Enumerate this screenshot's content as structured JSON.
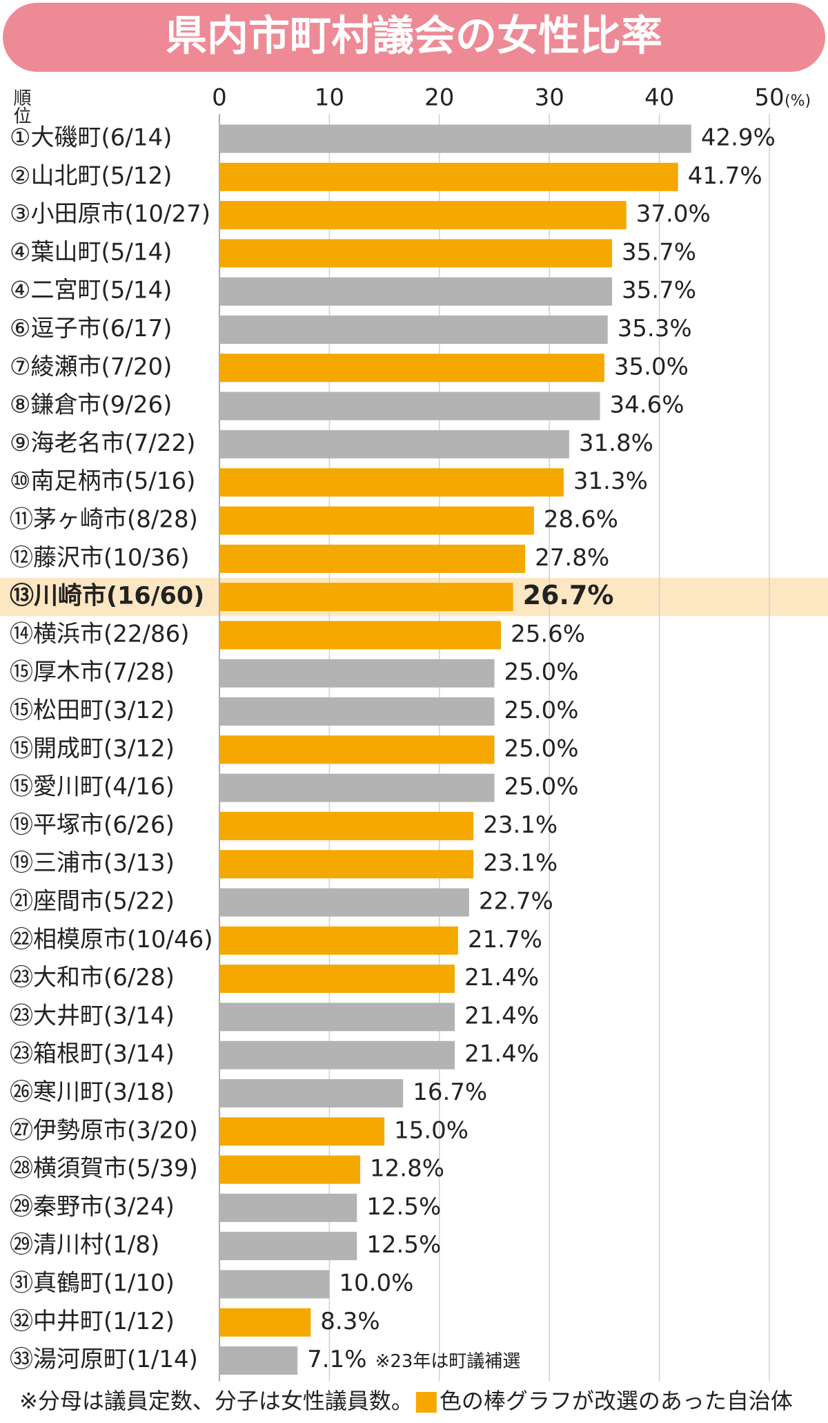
{
  "chart_data": {
    "type": "bar",
    "orientation": "horizontal",
    "title": "県内市町村議会の女性比率",
    "y_axis_label": "順位",
    "x_unit": "(%)",
    "categories": [
      "①大磯町(6/14)",
      "②山北町(5/12)",
      "③小田原市(10/27)",
      "④葉山町(5/14)",
      "④二宮町(5/14)",
      "⑥逗子市(6/17)",
      "⑦綾瀬市(7/20)",
      "⑧鎌倉市(9/26)",
      "⑨海老名市(7/22)",
      "⑩南足柄市(5/16)",
      "⑪茅ヶ崎市(8/28)",
      "⑫藤沢市(10/36)",
      "⑬川崎市(16/60)",
      "⑭横浜市(22/86)",
      "⑮厚木市(7/28)",
      "⑮松田町(3/12)",
      "⑮開成町(3/12)",
      "⑮愛川町(4/16)",
      "⑲平塚市(6/26)",
      "⑲三浦市(3/13)",
      "㉑座間市(5/22)",
      "㉒相模原市(10/46)",
      "㉓大和市(6/28)",
      "㉓大井町(3/14)",
      "㉓箱根町(3/14)",
      "㉖寒川町(3/18)",
      "㉗伊勢原市(3/20)",
      "㉘横須賀市(5/39)",
      "㉙秦野市(3/24)",
      "㉙清川村(1/8)",
      "㉛真鶴町(1/10)",
      "㉜中井町(1/12)",
      "㉝湯河原町(1/14)"
    ],
    "values": [
      42.9,
      41.7,
      37.0,
      35.7,
      35.7,
      35.3,
      35.0,
      34.6,
      31.8,
      31.3,
      28.6,
      27.8,
      26.7,
      25.6,
      25.0,
      25.0,
      25.0,
      25.0,
      23.1,
      23.1,
      22.7,
      21.7,
      21.4,
      21.4,
      21.4,
      16.7,
      15.0,
      12.8,
      12.5,
      12.5,
      10.0,
      8.3,
      7.1
    ],
    "value_labels": [
      "42.9%",
      "41.7%",
      "37.0%",
      "35.7%",
      "35.7%",
      "35.3%",
      "35.0%",
      "34.6%",
      "31.8%",
      "31.3%",
      "28.6%",
      "27.8%",
      "26.7%",
      "25.6%",
      "25.0%",
      "25.0%",
      "25.0%",
      "25.0%",
      "23.1%",
      "23.1%",
      "22.7%",
      "21.7%",
      "21.4%",
      "21.4%",
      "21.4%",
      "16.7%",
      "15.0%",
      "12.8%",
      "12.5%",
      "12.5%",
      "10.0%",
      "8.3%",
      "7.1%"
    ],
    "colors": [
      "#b3b3b3",
      "#f5a800",
      "#f5a800",
      "#f5a800",
      "#b3b3b3",
      "#b3b3b3",
      "#f5a800",
      "#b3b3b3",
      "#b3b3b3",
      "#f5a800",
      "#f5a800",
      "#f5a800",
      "#f5a800",
      "#f5a800",
      "#b3b3b3",
      "#b3b3b3",
      "#f5a800",
      "#b3b3b3",
      "#f5a800",
      "#f5a800",
      "#b3b3b3",
      "#f5a800",
      "#f5a800",
      "#b3b3b3",
      "#b3b3b3",
      "#b3b3b3",
      "#f5a800",
      "#f5a800",
      "#b3b3b3",
      "#b3b3b3",
      "#b3b3b3",
      "#f5a800",
      "#b3b3b3"
    ],
    "highlight": "川崎市",
    "annotation": "※23年は町議補選",
    "xlim": [
      0,
      50
    ],
    "xticks": [
      0,
      10,
      20,
      30,
      40,
      50
    ],
    "grid": true,
    "footnote": [
      "※分母は議員定数、分子は女性議員数。",
      "色の棒グラフが改選のあった自治体"
    ],
    "legend_color": "#f5a800"
  }
}
